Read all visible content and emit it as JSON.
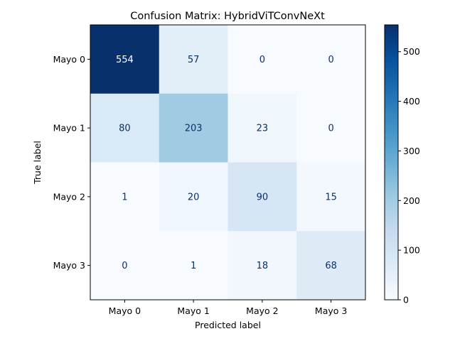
{
  "chart_data": {
    "type": "heatmap",
    "title": "Confusion Matrix: HybridViTConvNeXt",
    "xlabel": "Predicted label",
    "ylabel": "True label",
    "x_categories": [
      "Mayo 0",
      "Mayo 1",
      "Mayo 2",
      "Mayo 3"
    ],
    "y_categories": [
      "Mayo 0",
      "Mayo 1",
      "Mayo 2",
      "Mayo 3"
    ],
    "values": [
      [
        554,
        57,
        0,
        0
      ],
      [
        80,
        203,
        23,
        0
      ],
      [
        1,
        20,
        90,
        15
      ],
      [
        0,
        1,
        18,
        68
      ]
    ],
    "colormap": "Blues",
    "value_range": [
      0,
      554
    ],
    "colorbar_ticks": [
      0,
      100,
      200,
      300,
      400,
      500
    ],
    "colorbar_tick_labels": [
      "0",
      "100",
      "200",
      "300",
      "400",
      "500"
    ],
    "light_text_color": "#ffffff",
    "dark_text_color": "#08306b"
  }
}
